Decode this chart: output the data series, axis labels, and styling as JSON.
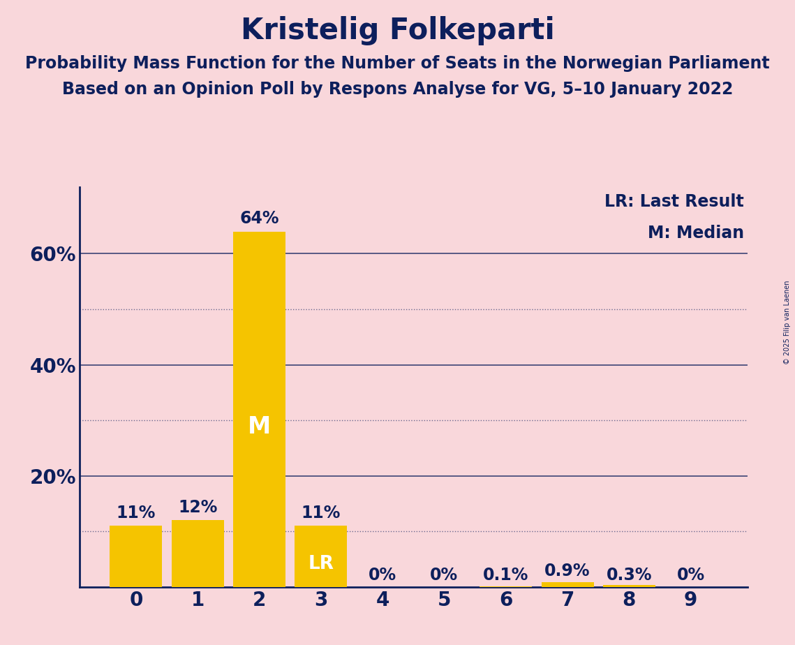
{
  "title": "Kristelig Folkeparti",
  "subtitle1": "Probability Mass Function for the Number of Seats in the Norwegian Parliament",
  "subtitle2": "Based on an Opinion Poll by Respons Analyse for VG, 5–10 January 2022",
  "copyright": "© 2025 Filip van Laenen",
  "categories": [
    0,
    1,
    2,
    3,
    4,
    5,
    6,
    7,
    8,
    9
  ],
  "values": [
    0.11,
    0.12,
    0.64,
    0.11,
    0.0,
    0.0,
    0.001,
    0.009,
    0.003,
    0.0
  ],
  "bar_color": "#F5C400",
  "background_color": "#F9D7DB",
  "text_color": "#0D1F5C",
  "median_seat": 2,
  "lr_seat": 3,
  "ylim": [
    0,
    0.72
  ],
  "yticks_labeled": [
    0.2,
    0.4,
    0.6
  ],
  "ytick_labeled_strs": [
    "20%",
    "40%",
    "60%"
  ],
  "yticks_all": [
    0.1,
    0.2,
    0.3,
    0.4,
    0.5,
    0.6
  ],
  "grid_color": "#0D1F5C",
  "title_fontsize": 30,
  "subtitle_fontsize": 17,
  "label_fontsize": 17,
  "tick_fontsize": 20,
  "legend_fontsize": 17,
  "bar_labels": [
    "11%",
    "12%",
    "64%",
    "11%",
    "0%",
    "0%",
    "0.1%",
    "0.9%",
    "0.3%",
    "0%"
  ]
}
